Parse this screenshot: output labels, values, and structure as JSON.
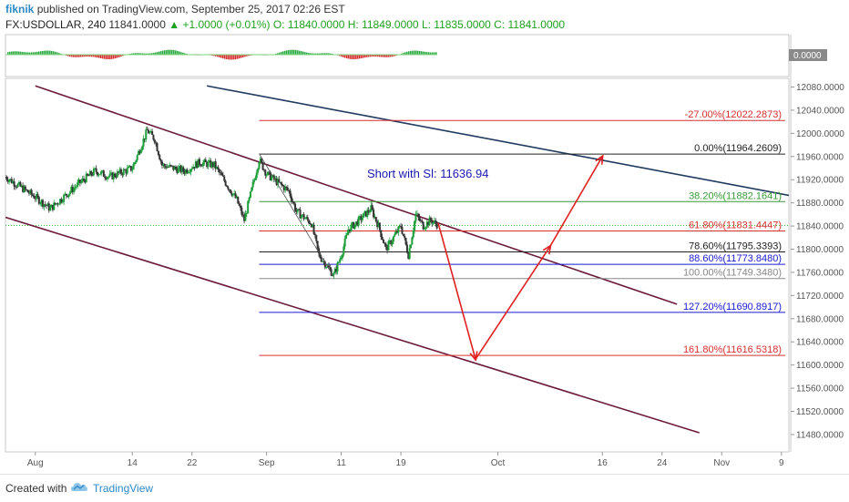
{
  "header": {
    "author": "fiknik",
    "published": "published on TradingView.com, September 25, 2017 02:26 EST",
    "symbol": "FX:USDOLLAR, 240",
    "last": "11841.0000",
    "change": "+1.0000 (+0.01%)",
    "open": "O: 11840.0000",
    "high": "H: 11849.0000",
    "low": "L: 11835.0000",
    "close": "C: 11841.0000"
  },
  "footer": {
    "created_with": "Created with",
    "brand": "TradingView"
  },
  "indicator": {
    "value_label": "0.0000"
  },
  "colors": {
    "bull": "#1e9e3a",
    "bear": "#333333",
    "channel": "#6b1a3c",
    "trendline": "#1f3a5f",
    "fib_red": "#d93030",
    "fib_green": "#3a9a3a",
    "fib_blue": "#1a1ad0",
    "fib_black": "#222222",
    "fib_gray": "#888888",
    "arrow": "#e02020",
    "annotation": "#1a1ab0"
  },
  "chart_data": {
    "type": "candlestick",
    "title": "",
    "annotation": "Short with Sl: 11636.94",
    "y_range": [
      11450,
      12095
    ],
    "y_ticks": [
      "12080.0000",
      "12040.0000",
      "12000.0000",
      "11960.0000",
      "11920.0000",
      "11880.0000",
      "11840.0000",
      "11800.0000",
      "11760.0000",
      "11720.0000",
      "11680.0000",
      "11640.0000",
      "11600.0000",
      "11560.0000",
      "11520.0000",
      "11480.0000"
    ],
    "y_tick_values": [
      12080,
      12040,
      12000,
      11960,
      11920,
      11880,
      11840,
      11800,
      11760,
      11720,
      11680,
      11640,
      11600,
      11560,
      11520,
      11480
    ],
    "x_ticks": [
      {
        "label": "Aug",
        "date": "2017-08-01"
      },
      {
        "label": "14",
        "date": "2017-08-14"
      },
      {
        "label": "22",
        "date": "2017-08-22"
      },
      {
        "label": "Sep",
        "date": "2017-09-01"
      },
      {
        "label": "11",
        "date": "2017-09-11"
      },
      {
        "label": "19",
        "date": "2017-09-19"
      },
      {
        "label": "Oct",
        "date": "2017-10-02"
      },
      {
        "label": "16",
        "date": "2017-10-16"
      },
      {
        "label": "24",
        "date": "2017-10-24"
      },
      {
        "label": "Nov",
        "date": "2017-11-01"
      },
      {
        "label": "9",
        "date": "2017-11-09"
      }
    ],
    "x_range": [
      "2017-07-28",
      "2017-11-10"
    ],
    "last_price": 11841,
    "fib_levels": [
      {
        "label": "-27.00%(12022.2873)",
        "value": 12022.2873,
        "color": "#d93030"
      },
      {
        "label": "0.00%(11964.2609)",
        "value": 11964.2609,
        "color": "#222222"
      },
      {
        "label": "38.20%(11882.1641)",
        "value": 11882.1641,
        "color": "#3a9a3a"
      },
      {
        "label": "61.80%(11831.4447)",
        "value": 11831.4447,
        "color": "#d93030"
      },
      {
        "label": "78.60%(11795.3393)",
        "value": 11795.3393,
        "color": "#222222"
      },
      {
        "label": "88.60%(11773.8480)",
        "value": 11773.848,
        "color": "#1a1ad0"
      },
      {
        "label": "100.00%(11749.3480)",
        "value": 11749.348,
        "color": "#888888"
      },
      {
        "label": "127.20%(11690.8917)",
        "value": 11690.8917,
        "color": "#1a1ad0"
      },
      {
        "label": "161.80%(11616.5318)",
        "value": 11616.5318,
        "color": "#d93030"
      }
    ],
    "fib_start_date": "2017-08-31",
    "channel_upper": [
      [
        "2017-08-01",
        12082
      ],
      [
        "2017-10-26",
        11705
      ]
    ],
    "channel_lower": [
      [
        "2017-07-28",
        11855
      ],
      [
        "2017-10-29",
        11483
      ]
    ],
    "trendline": [
      [
        "2017-08-24",
        12082
      ],
      [
        "2017-11-10",
        11893
      ]
    ],
    "arrows": [
      [
        [
          "2017-09-24",
          11845
        ],
        [
          "2017-09-29",
          11610
        ]
      ],
      [
        [
          "2017-09-29",
          11610
        ],
        [
          "2017-10-09",
          11805
        ]
      ],
      [
        [
          "2017-10-09",
          11805
        ],
        [
          "2017-10-16",
          11960
        ]
      ]
    ],
    "down_leg": [
      [
        "2017-08-31",
        11965
      ],
      [
        "2017-09-10",
        11752
      ]
    ],
    "candles_anchor": [
      [
        "2017-07-28",
        11925
      ],
      [
        "2017-08-01",
        11890
      ],
      [
        "2017-08-03",
        11870
      ],
      [
        "2017-08-07",
        11915
      ],
      [
        "2017-08-09",
        11935
      ],
      [
        "2017-08-11",
        11925
      ],
      [
        "2017-08-14",
        11940
      ],
      [
        "2017-08-16",
        12005
      ],
      [
        "2017-08-17",
        11990
      ],
      [
        "2017-08-18",
        11945
      ],
      [
        "2017-08-21",
        11935
      ],
      [
        "2017-08-23",
        11950
      ],
      [
        "2017-08-25",
        11945
      ],
      [
        "2017-08-28",
        11885
      ],
      [
        "2017-08-29",
        11850
      ],
      [
        "2017-08-31",
        11955
      ],
      [
        "2017-09-01",
        11930
      ],
      [
        "2017-09-04",
        11900
      ],
      [
        "2017-09-05",
        11865
      ],
      [
        "2017-09-07",
        11845
      ],
      [
        "2017-09-08",
        11790
      ],
      [
        "2017-09-10",
        11755
      ],
      [
        "2017-09-11",
        11790
      ],
      [
        "2017-09-12",
        11835
      ],
      [
        "2017-09-13",
        11845
      ],
      [
        "2017-09-15",
        11870
      ],
      [
        "2017-09-16",
        11840
      ],
      [
        "2017-09-17",
        11800
      ],
      [
        "2017-09-19",
        11840
      ],
      [
        "2017-09-20",
        11790
      ],
      [
        "2017-09-21",
        11860
      ],
      [
        "2017-09-22",
        11840
      ],
      [
        "2017-09-23",
        11850
      ],
      [
        "2017-09-24",
        11841
      ]
    ],
    "macd_hist_note": ""
  }
}
